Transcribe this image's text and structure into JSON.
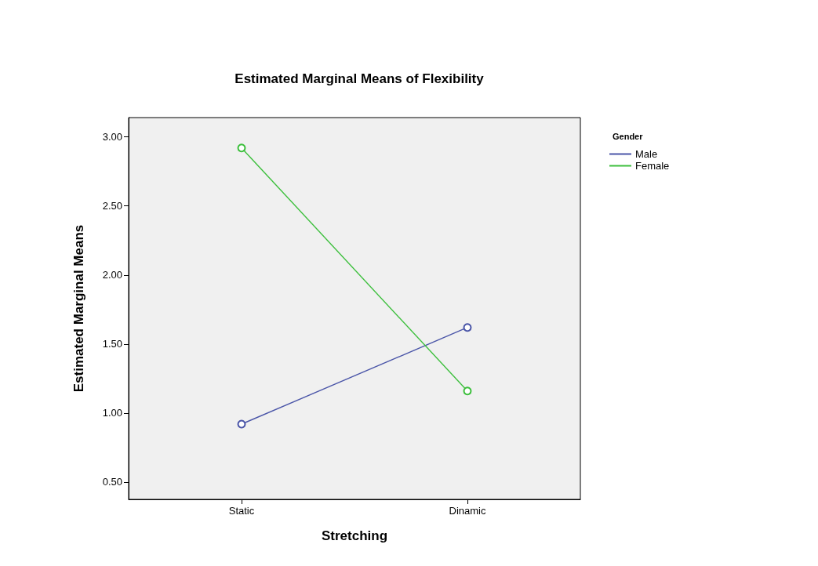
{
  "chart_data": {
    "type": "line",
    "title": "Estimated Marginal Means of Flexibility",
    "xlabel": "Stretching",
    "ylabel": "Estimated Marginal Means",
    "legend_title": "Gender",
    "categories": [
      "Static",
      "Dinamic"
    ],
    "series": [
      {
        "name": "Male",
        "color": "#4a55a8",
        "values": [
          0.92,
          1.62
        ]
      },
      {
        "name": "Female",
        "color": "#3cbf3c",
        "values": [
          2.92,
          1.16
        ]
      }
    ],
    "ylim": [
      0.375,
      3.14
    ],
    "yticks": [
      {
        "value": 0.5,
        "label": "0.50"
      },
      {
        "value": 1,
        "label": "1.00"
      },
      {
        "value": 1.5,
        "label": "1.50"
      },
      {
        "value": 2,
        "label": "2.00"
      },
      {
        "value": 2.5,
        "label": "2.50"
      },
      {
        "value": 3,
        "label": "3.00"
      }
    ],
    "grid": false,
    "legend": "top right",
    "marker": "circle",
    "line_style": "solid"
  }
}
